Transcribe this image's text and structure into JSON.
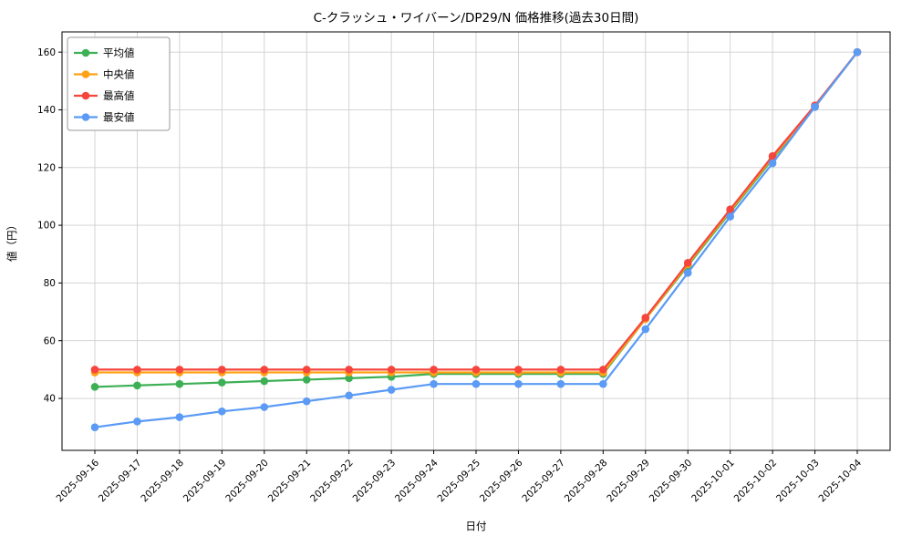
{
  "figure": {
    "title": "C-クラッシュ・ワイバーン/DP29/N 価格推移(過去30日間)",
    "xlabel": "日付",
    "ylabel": "値（円）"
  },
  "chart_data": {
    "type": "line",
    "title": "C-クラッシュ・ワイバーン/DP29/N 価格推移(過去30日間)",
    "xlabel": "日付",
    "ylabel": "値（円）",
    "x": [
      "2025-09-16",
      "2025-09-17",
      "2025-09-18",
      "2025-09-19",
      "2025-09-20",
      "2025-09-21",
      "2025-09-22",
      "2025-09-23",
      "2025-09-24",
      "2025-09-25",
      "2025-09-26",
      "2025-09-27",
      "2025-09-28",
      "2025-09-29",
      "2025-09-30",
      "2025-10-01",
      "2025-10-02",
      "2025-10-03",
      "2025-10-04"
    ],
    "series": [
      {
        "name": "平均値",
        "color": "#3db056",
        "values": [
          44,
          44.5,
          45,
          45.5,
          46,
          46.5,
          47,
          47.5,
          48.5,
          48.5,
          48.5,
          48.5,
          48.5,
          67.5,
          86,
          104.5,
          123,
          141,
          160
        ]
      },
      {
        "name": "中央値",
        "color": "#ffa015",
        "values": [
          49,
          49,
          49,
          49,
          49,
          49,
          49,
          49,
          49,
          49,
          49,
          49,
          49,
          67.5,
          86.5,
          105,
          123.5,
          141,
          160
        ]
      },
      {
        "name": "最高値",
        "color": "#f5453d",
        "values": [
          50,
          50,
          50,
          50,
          50,
          50,
          50,
          50,
          50,
          50,
          50,
          50,
          50,
          68,
          87,
          105.5,
          124,
          141.5,
          160
        ]
      },
      {
        "name": "最安値",
        "color": "#5b9bf5",
        "values": [
          30,
          32,
          33.5,
          35.5,
          37,
          39,
          41,
          43,
          45,
          45,
          45,
          45,
          45,
          64,
          83.5,
          103,
          121.5,
          141,
          160
        ]
      }
    ],
    "ylim": [
      22,
      167
    ],
    "yticks": [
      40,
      60,
      80,
      100,
      120,
      140,
      160
    ],
    "grid": true,
    "legend_position": "upper left",
    "grid_color": "#cfcfcf",
    "axis_color": "#000000",
    "background_color": "#ffffff"
  }
}
